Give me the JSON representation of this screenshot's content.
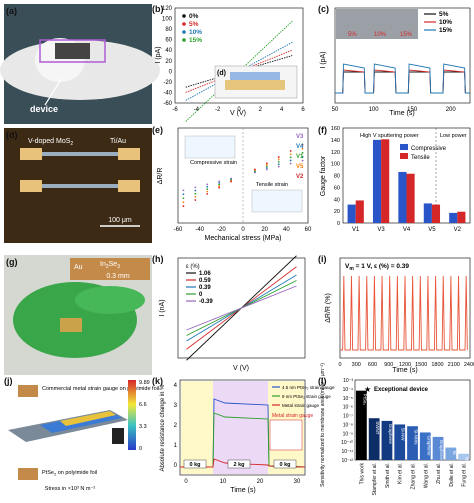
{
  "panels": {
    "a": {
      "label": "(a)",
      "annotation": "device"
    },
    "b": {
      "label": "(b)",
      "chart_data": {
        "type": "line",
        "xlabel": "V (V)",
        "ylabel": "I (pA)",
        "xlim": [
          -6,
          6
        ],
        "ylim": [
          -60,
          120
        ],
        "xticks": [
          "-6",
          "-4",
          "-2",
          "0",
          "2",
          "4",
          "6"
        ],
        "yticks": [
          "-60",
          "-40",
          "-20",
          "0",
          "20",
          "40",
          "60",
          "80",
          "100",
          "120"
        ],
        "series": [
          {
            "name": "0%",
            "color": "#111111",
            "slope": 6
          },
          {
            "name": "5%",
            "color": "#d62728",
            "slope": 8
          },
          {
            "name": "10%",
            "color": "#1f77b4",
            "slope": 11
          },
          {
            "name": "15%",
            "color": "#2ca02c",
            "slope": 19
          }
        ],
        "inset_label": "(d)"
      }
    },
    "c": {
      "label": "(c)",
      "chart_data": {
        "type": "line",
        "xlabel": "Time (s)",
        "ylabel": "I (pA)",
        "xlim": [
          50,
          225
        ],
        "xticks": [
          "50",
          "100",
          "150",
          "200"
        ],
        "series": [
          {
            "name": "5%",
            "color": "#111111"
          },
          {
            "name": "10%",
            "color": "#d62728"
          },
          {
            "name": "15%",
            "color": "#1f77b4"
          }
        ],
        "photo_labels": [
          "5%",
          "10%",
          "15%"
        ]
      }
    },
    "d": {
      "label": "(d)",
      "material": "V-doped MoS",
      "sub": "2",
      "contact": "Ti/Au",
      "scalebar": "100 μm"
    },
    "e": {
      "label": "(e)",
      "chart_data": {
        "type": "scatter",
        "xlabel": "Mechanical stress (MPa)",
        "ylabel": "ΔR/R",
        "xlim": [
          -60,
          60
        ],
        "xticks": [
          "-60",
          "-40",
          "-20",
          "0",
          "20",
          "40",
          "60"
        ],
        "legend": [
          "V3",
          "V4",
          "V1",
          "V5",
          "V2"
        ],
        "annotations": {
          "compressive": "Compressive strain",
          "tensile": "Tensile strain"
        }
      }
    },
    "f": {
      "label": "(f)",
      "chart_data": {
        "type": "bar",
        "ylabel": "Gauge factor",
        "ylim": [
          0,
          160
        ],
        "yticks": [
          "0",
          "20",
          "40",
          "60",
          "80",
          "100",
          "120",
          "140",
          "160"
        ],
        "categories": [
          "V1",
          "V3",
          "V4",
          "V5",
          "V2"
        ],
        "series": [
          {
            "name": "Compressive",
            "color": "#2a55c8",
            "values": [
              31,
              140,
              86,
              33,
              17
            ]
          },
          {
            "name": "Tensile",
            "color": "#d62728",
            "values": [
              38,
              141,
              83,
              31,
              19
            ]
          }
        ],
        "region_labels": [
          "High V sputtering power",
          "Low power"
        ]
      }
    },
    "g": {
      "label": "(g)",
      "material": "In",
      "sub1": "2",
      "material2": "Se",
      "sub2": "3",
      "element": "Au",
      "scalebar": "0.3 mm"
    },
    "h": {
      "label": "(h)",
      "chart_data": {
        "type": "line",
        "xlabel": "V (V)",
        "ylabel": "I (nA)",
        "legend_title": "ε (%)",
        "series": [
          {
            "name": "1.06",
            "color": "#111111",
            "slope": 1.9
          },
          {
            "name": "0.59",
            "color": "#d62728",
            "slope": 1.5
          },
          {
            "name": "0.39",
            "color": "#1f77b4",
            "slope": 1.2
          },
          {
            "name": "0",
            "color": "#2ca02c",
            "slope": 1.0
          },
          {
            "name": "-0.39",
            "color": "#9467bd",
            "slope": 0.8
          }
        ]
      }
    },
    "i": {
      "label": "(i)",
      "chart_data": {
        "type": "line",
        "xlabel": "Time (s)",
        "ylabel": "ΔR/R (%)",
        "xticks": [
          "0",
          "300",
          "600",
          "900",
          "1200",
          "1500",
          "1800",
          "2100",
          "2400"
        ],
        "annotation": "V",
        "annotation_sub": "m",
        "annotation_rest": " = 1 V, ε (%) = 0.39",
        "color": "#e8553a"
      }
    },
    "j": {
      "label": "(j)",
      "label_top": "Commercial metal strain gauge on polyimide foil",
      "label_bottom": "PtSe",
      "label_bottom_sub": "2",
      "label_bottom_rest": " on polyimide foil",
      "colorbar_title": "Stress in ×10³ N m⁻²",
      "colorbar_ticks": [
        "9.89",
        "6.6",
        "3.3",
        "0"
      ]
    },
    "k": {
      "label": "(k)",
      "chart_data": {
        "type": "line",
        "xlabel": "Time (s)",
        "ylabel": "Absolute resistance change in %",
        "xticks": [
          "0",
          "10",
          "20",
          "30"
        ],
        "yticks": [
          "0",
          "1",
          "2",
          "3",
          "4"
        ],
        "series": [
          {
            "name": "4.5 nm PtSe₂ strain gauge",
            "color": "#2a55c8"
          },
          {
            "name": "9 nm PtSe₂ strain gauge",
            "color": "#2ca02c"
          },
          {
            "name": "Metal strain gauge",
            "color": "#d62728"
          }
        ],
        "inset_title": "Metal strain gauge",
        "load_labels": [
          "0 kg",
          "2 kg",
          "0 kg"
        ]
      }
    },
    "l": {
      "label": "(l)",
      "chart_data": {
        "type": "bar",
        "ylabel": "Sensitivity normalized to membrane area (mbar⁻¹ μm⁻²)",
        "yticks": [
          "10⁻³",
          "10⁻⁴",
          "10⁻⁵",
          "10⁻⁶",
          "10⁻⁷",
          "10⁻⁸",
          "10⁻⁹",
          "10⁻¹⁰",
          "10⁻¹¹",
          "10⁻¹²"
        ],
        "categories": [
          "This work",
          "Stampfer et al.",
          "Smith et al.",
          "Kim et al.",
          "Zhang et al.",
          "Wang et al.",
          "Zhu et al.",
          "Dolle et al.",
          "Fung et al."
        ],
        "bar_labels": [
          "PtSe₂",
          "SWNT",
          "Graphene",
          "Si-NW",
          "Si-NWs",
          "Graphene",
          "Graphene",
          "Si",
          "MWNT"
        ],
        "log_values": [
          -4.2,
          -7.3,
          -7.6,
          -8.0,
          -8.2,
          -8.9,
          -9.4,
          -10.6,
          -11.3
        ],
        "annotation": "Exceptional device"
      }
    }
  }
}
